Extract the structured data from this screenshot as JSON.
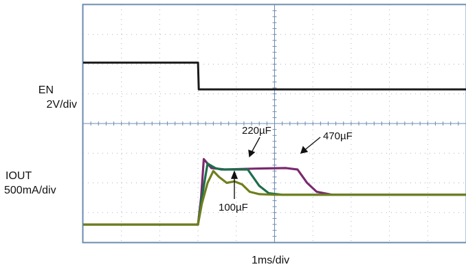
{
  "chart_data": {
    "type": "line",
    "title": "",
    "xlabel": "1ms/div",
    "x_units": "ms",
    "xlim": [
      0,
      10
    ],
    "grid": true,
    "channels": [
      {
        "label": "EN",
        "scale": "2V/div"
      },
      {
        "label": "IOUT",
        "scale": "500mA/div"
      }
    ],
    "series": [
      {
        "channel": "EN",
        "color": "#1a1a1a",
        "x": [
          0,
          3.0,
          3.02,
          10
        ],
        "y": [
          6.05,
          6.05,
          5.15,
          5.15
        ]
      },
      {
        "name": "100µF",
        "channel": "IOUT",
        "color": "#6e7f1c",
        "x": [
          0,
          3.0,
          3.1,
          3.25,
          3.4,
          3.55,
          3.75,
          3.95,
          4.15,
          4.35,
          4.6,
          5.0,
          10
        ],
        "y": [
          0.6,
          0.6,
          1.3,
          2.0,
          2.4,
          2.2,
          2.0,
          2.05,
          1.95,
          1.7,
          1.62,
          1.6,
          1.6
        ]
      },
      {
        "name": "220µF",
        "channel": "IOUT",
        "color": "#1c6e4a",
        "x": [
          0,
          3.0,
          3.1,
          3.25,
          3.45,
          3.6,
          3.8,
          4.3,
          4.6,
          4.85,
          5.2,
          10
        ],
        "y": [
          0.6,
          0.6,
          1.5,
          2.65,
          2.5,
          2.45,
          2.45,
          2.45,
          1.9,
          1.65,
          1.6,
          1.6
        ]
      },
      {
        "name": "470µF",
        "channel": "IOUT",
        "color": "#7a2a6e",
        "x": [
          0,
          3.0,
          3.08,
          3.15,
          3.35,
          3.7,
          4.5,
          5.3,
          5.6,
          5.85,
          6.1,
          6.5,
          10
        ],
        "y": [
          0.6,
          0.6,
          1.5,
          2.8,
          2.5,
          2.45,
          2.48,
          2.5,
          2.45,
          2.0,
          1.7,
          1.6,
          1.6
        ]
      }
    ],
    "annotations": [
      {
        "text": "220µF"
      },
      {
        "text": "470µF"
      },
      {
        "text": "100µF"
      }
    ]
  }
}
